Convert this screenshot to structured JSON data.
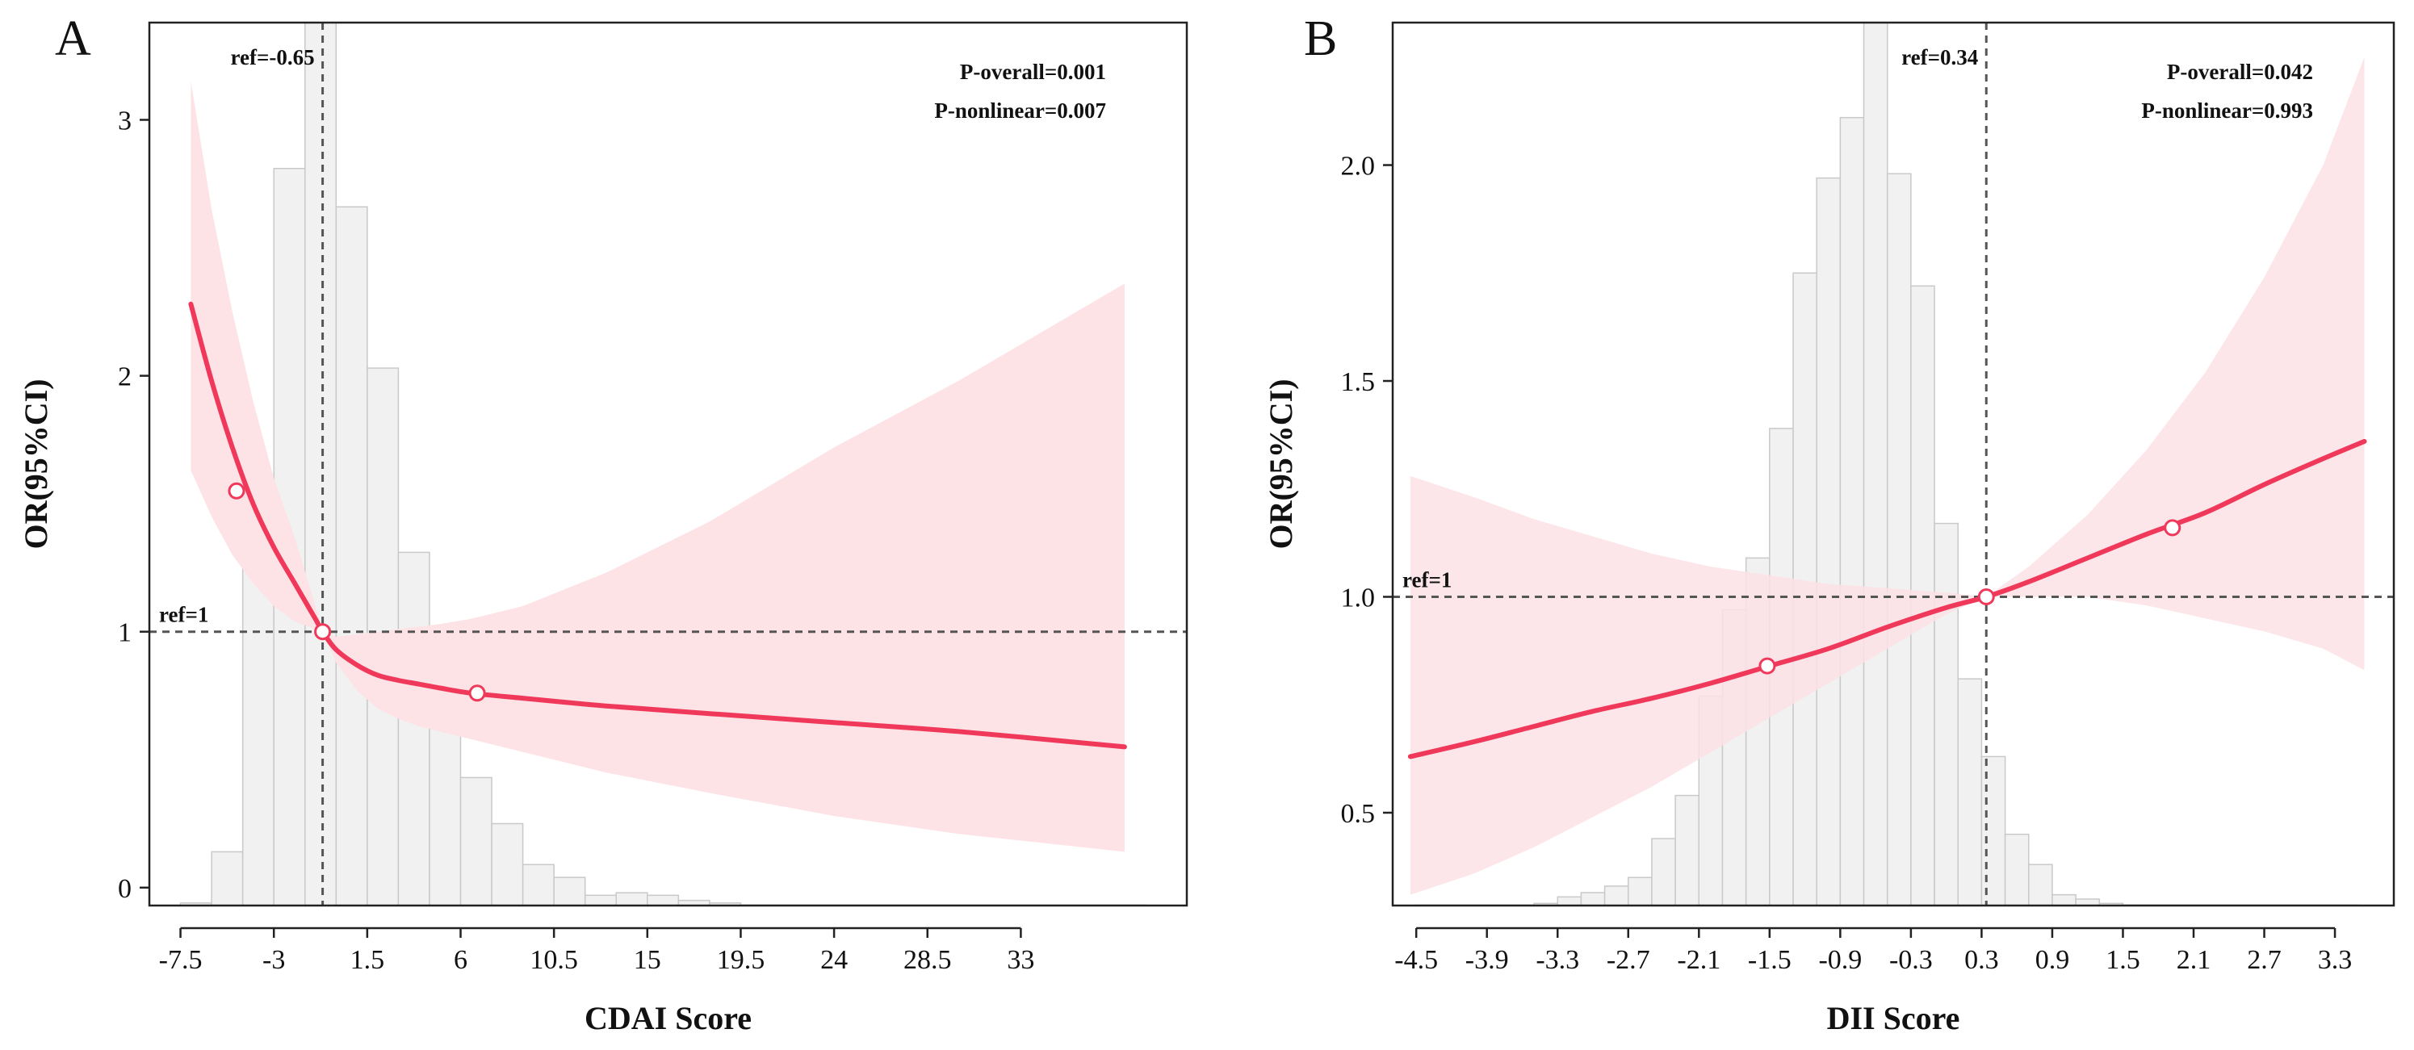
{
  "colors": {
    "curve": "#f0395a",
    "band": "#fde2e6",
    "bar_fill": "#f1f1f1",
    "bar_stroke": "#c9c9c9"
  },
  "chart_data": [
    {
      "type": "line",
      "panel": "A",
      "xlabel": "CDAI Score",
      "ylabel": "OR(95%CI)",
      "xlim": [
        -9,
        41
      ],
      "ylim": [
        -0.07,
        3.38
      ],
      "xticks": [
        -7.5,
        -3,
        1.5,
        6,
        10.5,
        15,
        19.5,
        24,
        28.5,
        33
      ],
      "xtick_labels": [
        "-7.5",
        "-3",
        "1.5",
        "6",
        "10.5",
        "15",
        "19.5",
        "24",
        "28.5",
        "33"
      ],
      "yticks": [
        0,
        1,
        2,
        3
      ],
      "ytick_labels": [
        "0",
        "1",
        "2",
        "3"
      ],
      "ref_x": -0.65,
      "ref_x_label": "ref=-0.65",
      "ref_y": 1,
      "ref_y_label": "ref=1",
      "p_overall": "P-overall=0.001",
      "p_nonlinear": "P-nonlinear=0.007",
      "histogram": {
        "bin_width": 1.5,
        "bin_starts": [
          -7.5,
          -6,
          -4.5,
          -3,
          -1.5,
          0,
          1.5,
          3,
          4.5,
          6,
          7.5,
          9,
          10.5,
          12,
          13.5,
          15,
          16.5,
          18,
          19.5,
          21,
          22.5,
          24,
          25.5,
          27,
          28.5,
          30,
          31.5,
          33,
          34.5,
          36,
          37.5
        ],
        "heights": [
          -0.06,
          0.14,
          1.27,
          2.81,
          3.38,
          2.66,
          2.03,
          1.31,
          0.64,
          0.43,
          0.25,
          0.09,
          0.04,
          -0.03,
          -0.02,
          -0.03,
          -0.05,
          -0.06,
          -0.07,
          -0.07,
          -0.07,
          -0.07,
          -0.07,
          -0.07,
          -0.07,
          -0.07,
          -0.07,
          -0.07,
          -0.07,
          -0.07,
          -0.07
        ]
      },
      "curve": {
        "x": [
          -7.0,
          -6.0,
          -5.0,
          -4.0,
          -3.0,
          -2.0,
          -1.0,
          -0.65,
          0.0,
          1.0,
          2.0,
          3.0,
          4.0,
          5.0,
          6.5,
          9.0,
          13.0,
          18.0,
          24.0,
          30.0,
          38.0
        ],
        "or": [
          2.28,
          1.98,
          1.72,
          1.5,
          1.33,
          1.19,
          1.05,
          1.0,
          0.93,
          0.87,
          0.83,
          0.81,
          0.795,
          0.78,
          0.76,
          0.74,
          0.71,
          0.68,
          0.645,
          0.61,
          0.55
        ],
        "lower": [
          1.63,
          1.45,
          1.3,
          1.19,
          1.1,
          1.04,
          1.01,
          1.0,
          0.88,
          0.77,
          0.7,
          0.66,
          0.63,
          0.61,
          0.58,
          0.53,
          0.45,
          0.37,
          0.28,
          0.21,
          0.14
        ],
        "upper": [
          3.15,
          2.65,
          2.25,
          1.9,
          1.6,
          1.37,
          1.1,
          1.0,
          0.98,
          0.99,
          1.0,
          1.01,
          1.02,
          1.03,
          1.05,
          1.1,
          1.23,
          1.43,
          1.72,
          1.98,
          2.36
        ]
      },
      "markers": [
        {
          "x": -4.8,
          "or": 1.55
        },
        {
          "x": -0.65,
          "or": 1.0
        },
        {
          "x": 6.8,
          "or": 0.76
        }
      ]
    },
    {
      "type": "line",
      "panel": "B",
      "xlabel": "DII Score",
      "ylabel": "OR(95%CI)",
      "xlim": [
        -4.7,
        3.8
      ],
      "ylim": [
        0.285,
        2.33
      ],
      "xticks": [
        -4.5,
        -3.9,
        -3.3,
        -2.7,
        -2.1,
        -1.5,
        -0.9,
        -0.3,
        0.3,
        0.9,
        1.5,
        2.1,
        2.7,
        3.3
      ],
      "xtick_labels": [
        "-4.5",
        "-3.9",
        "-3.3",
        "-2.7",
        "-2.1",
        "-1.5",
        "-0.9",
        "-0.3",
        "0.3",
        "0.9",
        "1.5",
        "2.1",
        "2.7",
        "3.3"
      ],
      "yticks": [
        0.5,
        1.0,
        1.5,
        2.0
      ],
      "ytick_labels": [
        "0.5",
        "1.0",
        "1.5",
        "2.0"
      ],
      "ref_x": 0.34,
      "ref_x_label": "ref=0.34",
      "ref_y": 1.0,
      "ref_y_label": "ref=1",
      "p_overall": "P-overall=0.042",
      "p_nonlinear": "P-nonlinear=0.993",
      "histogram": {
        "bin_width": 0.2,
        "bin_starts": [
          -4.5,
          -4.3,
          -4.1,
          -3.9,
          -3.7,
          -3.5,
          -3.3,
          -3.1,
          -2.9,
          -2.7,
          -2.5,
          -2.3,
          -2.1,
          -1.9,
          -1.7,
          -1.5,
          -1.3,
          -1.1,
          -0.9,
          -0.7,
          -0.5,
          -0.3,
          -0.1,
          0.1,
          0.3,
          0.5,
          0.7,
          0.9,
          1.1,
          1.3,
          1.5,
          1.7,
          1.9,
          2.1,
          2.3,
          2.5,
          2.7,
          2.9,
          3.1,
          3.3
        ],
        "heights": [
          0.28,
          0.28,
          0.28,
          0.28,
          0.285,
          0.29,
          0.305,
          0.315,
          0.33,
          0.35,
          0.44,
          0.54,
          0.77,
          0.97,
          1.09,
          1.39,
          1.75,
          1.97,
          2.11,
          2.33,
          1.98,
          1.72,
          1.17,
          0.81,
          0.63,
          0.45,
          0.38,
          0.31,
          0.3,
          0.29,
          0.28,
          0.28,
          0.28,
          0.28,
          0.28,
          0.28,
          0.28,
          0.28,
          0.28,
          0.28
        ]
      },
      "curve": {
        "x": [
          -4.55,
          -4.0,
          -3.5,
          -3.0,
          -2.5,
          -2.0,
          -1.5,
          -1.0,
          -0.5,
          0.0,
          0.34,
          0.7,
          1.2,
          1.7,
          2.2,
          2.7,
          3.2,
          3.55
        ],
        "or": [
          0.63,
          0.665,
          0.7,
          0.735,
          0.765,
          0.8,
          0.84,
          0.88,
          0.93,
          0.975,
          1.0,
          1.035,
          1.09,
          1.145,
          1.195,
          1.26,
          1.32,
          1.36
        ],
        "lower": [
          0.31,
          0.36,
          0.42,
          0.49,
          0.56,
          0.64,
          0.72,
          0.8,
          0.88,
          0.96,
          1.0,
          1.0,
          1.0,
          0.98,
          0.95,
          0.92,
          0.88,
          0.83
        ],
        "upper": [
          1.28,
          1.23,
          1.18,
          1.14,
          1.1,
          1.07,
          1.05,
          1.03,
          1.02,
          1.01,
          1.0,
          1.07,
          1.19,
          1.34,
          1.52,
          1.74,
          2.0,
          2.25
        ]
      },
      "markers": [
        {
          "x": -1.52,
          "or": 0.84
        },
        {
          "x": 0.34,
          "or": 1.0
        },
        {
          "x": 1.92,
          "or": 1.16
        }
      ]
    }
  ]
}
